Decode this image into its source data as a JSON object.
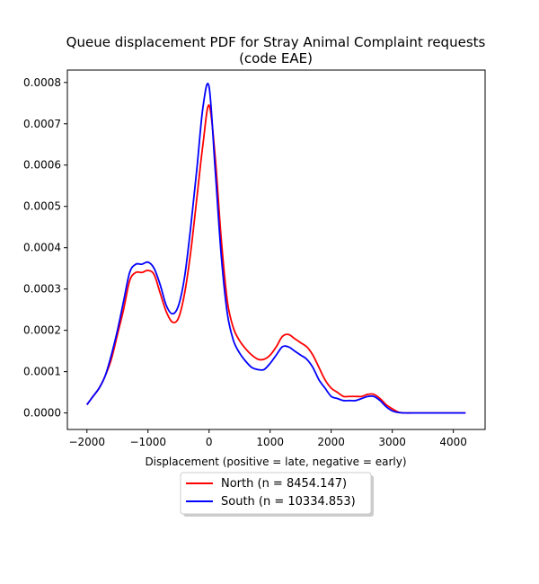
{
  "chart_data": {
    "type": "line",
    "title_line1": "Queue displacement PDF for Stray Animal Complaint  requests",
    "title_line2": "(code EAE)",
    "xlabel": "Displacement (positive = late, negative = early)",
    "ylabel": "",
    "xlim": [
      -2320,
      4520
    ],
    "ylim": [
      -4e-05,
      0.00083
    ],
    "x_ticks": [
      -2000,
      -1000,
      0,
      1000,
      2000,
      3000,
      4000
    ],
    "x_tick_labels": [
      "−2000",
      "−1000",
      "0",
      "1000",
      "2000",
      "3000",
      "4000"
    ],
    "y_ticks": [
      0,
      0.0001,
      0.0002,
      0.0003,
      0.0004,
      0.0005,
      0.0006,
      0.0007,
      0.0008
    ],
    "y_tick_labels": [
      "0.0000",
      "0.0001",
      "0.0002",
      "0.0003",
      "0.0004",
      "0.0005",
      "0.0006",
      "0.0007",
      "0.0008"
    ],
    "grid": false,
    "legend_position": "below plot",
    "series": [
      {
        "name": "North (n = 8454.147)",
        "color": "#ff0000",
        "x": [
          -2000,
          -1900,
          -1800,
          -1700,
          -1600,
          -1500,
          -1400,
          -1300,
          -1200,
          -1100,
          -1000,
          -900,
          -800,
          -700,
          -600,
          -500,
          -400,
          -300,
          -200,
          -100,
          0,
          100,
          200,
          300,
          400,
          500,
          600,
          700,
          800,
          900,
          1000,
          1100,
          1200,
          1300,
          1400,
          1500,
          1600,
          1700,
          1800,
          1900,
          2000,
          2100,
          2200,
          2300,
          2400,
          2500,
          2600,
          2700,
          2800,
          2900,
          3000,
          3100,
          3200,
          3400,
          3600,
          3800,
          4000,
          4200
        ],
        "y": [
          2e-05,
          4e-05,
          6e-05,
          9e-05,
          0.00013,
          0.00019,
          0.00025,
          0.00032,
          0.00034,
          0.00034,
          0.000345,
          0.000335,
          0.00029,
          0.000245,
          0.00022,
          0.00023,
          0.00029,
          0.00039,
          0.00052,
          0.00065,
          0.000745,
          0.00062,
          0.00042,
          0.00027,
          0.000205,
          0.000175,
          0.000155,
          0.00014,
          0.00013,
          0.00013,
          0.00014,
          0.00016,
          0.000185,
          0.00019,
          0.00018,
          0.00017,
          0.00016,
          0.00014,
          0.00011,
          8e-05,
          6e-05,
          5e-05,
          4e-05,
          4e-05,
          4e-05,
          4e-05,
          4.5e-05,
          4.5e-05,
          3.5e-05,
          2e-05,
          1e-05,
          2e-06,
          0,
          0,
          0,
          0,
          0,
          0
        ]
      },
      {
        "name": "South (n = 10334.853)",
        "color": "#0000ff",
        "x": [
          -2000,
          -1900,
          -1800,
          -1700,
          -1600,
          -1500,
          -1400,
          -1300,
          -1200,
          -1100,
          -1000,
          -900,
          -800,
          -700,
          -600,
          -500,
          -400,
          -300,
          -200,
          -100,
          0,
          100,
          200,
          300,
          400,
          500,
          600,
          700,
          800,
          900,
          1000,
          1100,
          1200,
          1300,
          1400,
          1500,
          1600,
          1700,
          1800,
          1900,
          2000,
          2100,
          2200,
          2300,
          2400,
          2500,
          2600,
          2700,
          2800,
          2900,
          3000,
          3100,
          3200,
          3400,
          3600,
          3800,
          4000,
          4200
        ],
        "y": [
          2e-05,
          4e-05,
          6e-05,
          9e-05,
          0.00014,
          0.0002,
          0.00027,
          0.00034,
          0.00036,
          0.00036,
          0.000365,
          0.00035,
          0.00031,
          0.00026,
          0.00024,
          0.00026,
          0.00033,
          0.00045,
          0.00059,
          0.00074,
          0.00079,
          0.00059,
          0.00038,
          0.00024,
          0.000175,
          0.000145,
          0.000125,
          0.00011,
          0.000105,
          0.000105,
          0.00012,
          0.00014,
          0.00016,
          0.00016,
          0.00015,
          0.00014,
          0.00013,
          0.00011,
          8e-05,
          6e-05,
          4e-05,
          3.5e-05,
          3e-05,
          3e-05,
          3e-05,
          3.5e-05,
          4e-05,
          4e-05,
          3e-05,
          1.5e-05,
          5e-06,
          1e-06,
          0,
          0,
          0,
          0,
          0,
          0
        ]
      }
    ]
  }
}
